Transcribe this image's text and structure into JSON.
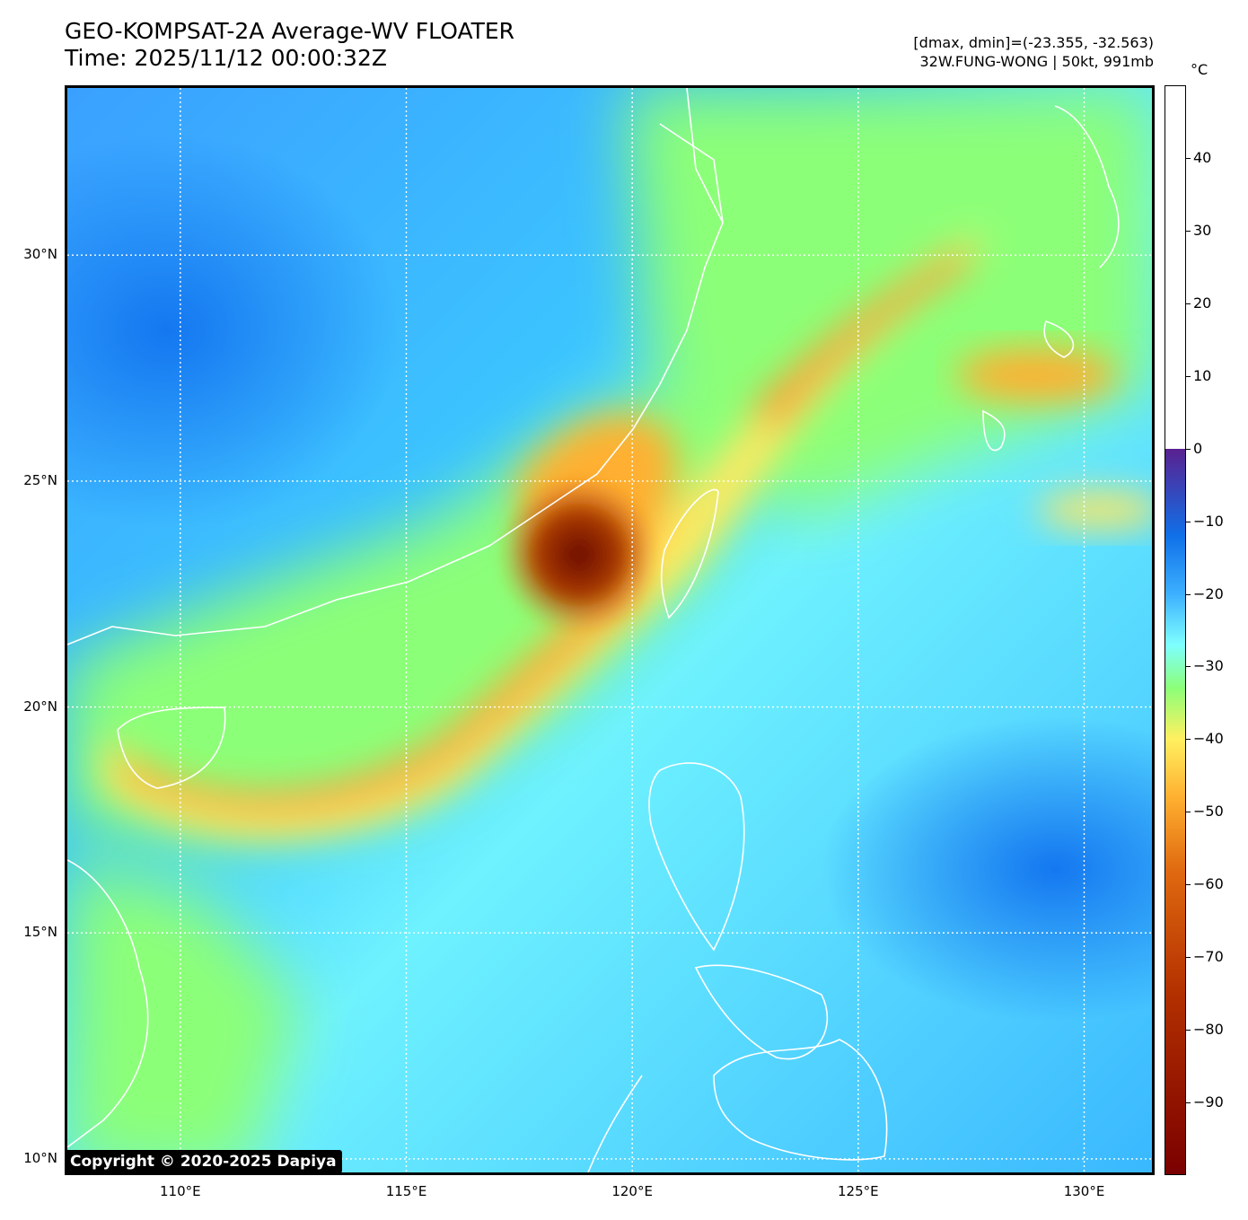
{
  "header": {
    "title": "GEO-KOMPSAT-2A Average-WV FLOATER",
    "time": "Time: 2025/11/12 00:00:32Z",
    "dmax_dmin": "[dmax, dmin]=(-23.355, -32.563)",
    "storm": "32W.FUNG-WONG | 50kt, 991mb"
  },
  "map": {
    "lat_labels": [
      "30°N",
      "25°N",
      "20°N",
      "15°N",
      "10°N"
    ],
    "lon_labels": [
      "110°E",
      "115°E",
      "120°E",
      "125°E",
      "130°E"
    ],
    "lat_values": [
      30,
      25,
      20,
      15,
      10
    ],
    "lon_values": [
      110,
      115,
      120,
      125,
      130
    ],
    "lat_range": [
      9.7,
      33.7
    ],
    "lon_range": [
      107.5,
      131.5
    ],
    "grid": true,
    "coastline_color": "#ffffff"
  },
  "colorbar": {
    "unit": "°C",
    "ticks": [
      "40",
      "30",
      "20",
      "10",
      "0",
      "−10",
      "−20",
      "−30",
      "−40",
      "−50",
      "−60",
      "−70",
      "−80",
      "−90"
    ],
    "tick_values": [
      40,
      30,
      20,
      10,
      0,
      -10,
      -20,
      -30,
      -40,
      -50,
      -60,
      -70,
      -80,
      -90
    ],
    "range": [
      -100,
      50
    ],
    "colors": [
      "#7a0000",
      "#b33000",
      "#e06a10",
      "#ffb030",
      "#fff060",
      "#8cff78",
      "#7effff",
      "#3cb0ff",
      "#1070e8",
      "#5a2090",
      "#ffffff"
    ]
  },
  "copyright": "Copyright © 2020-2025 Dapiya"
}
